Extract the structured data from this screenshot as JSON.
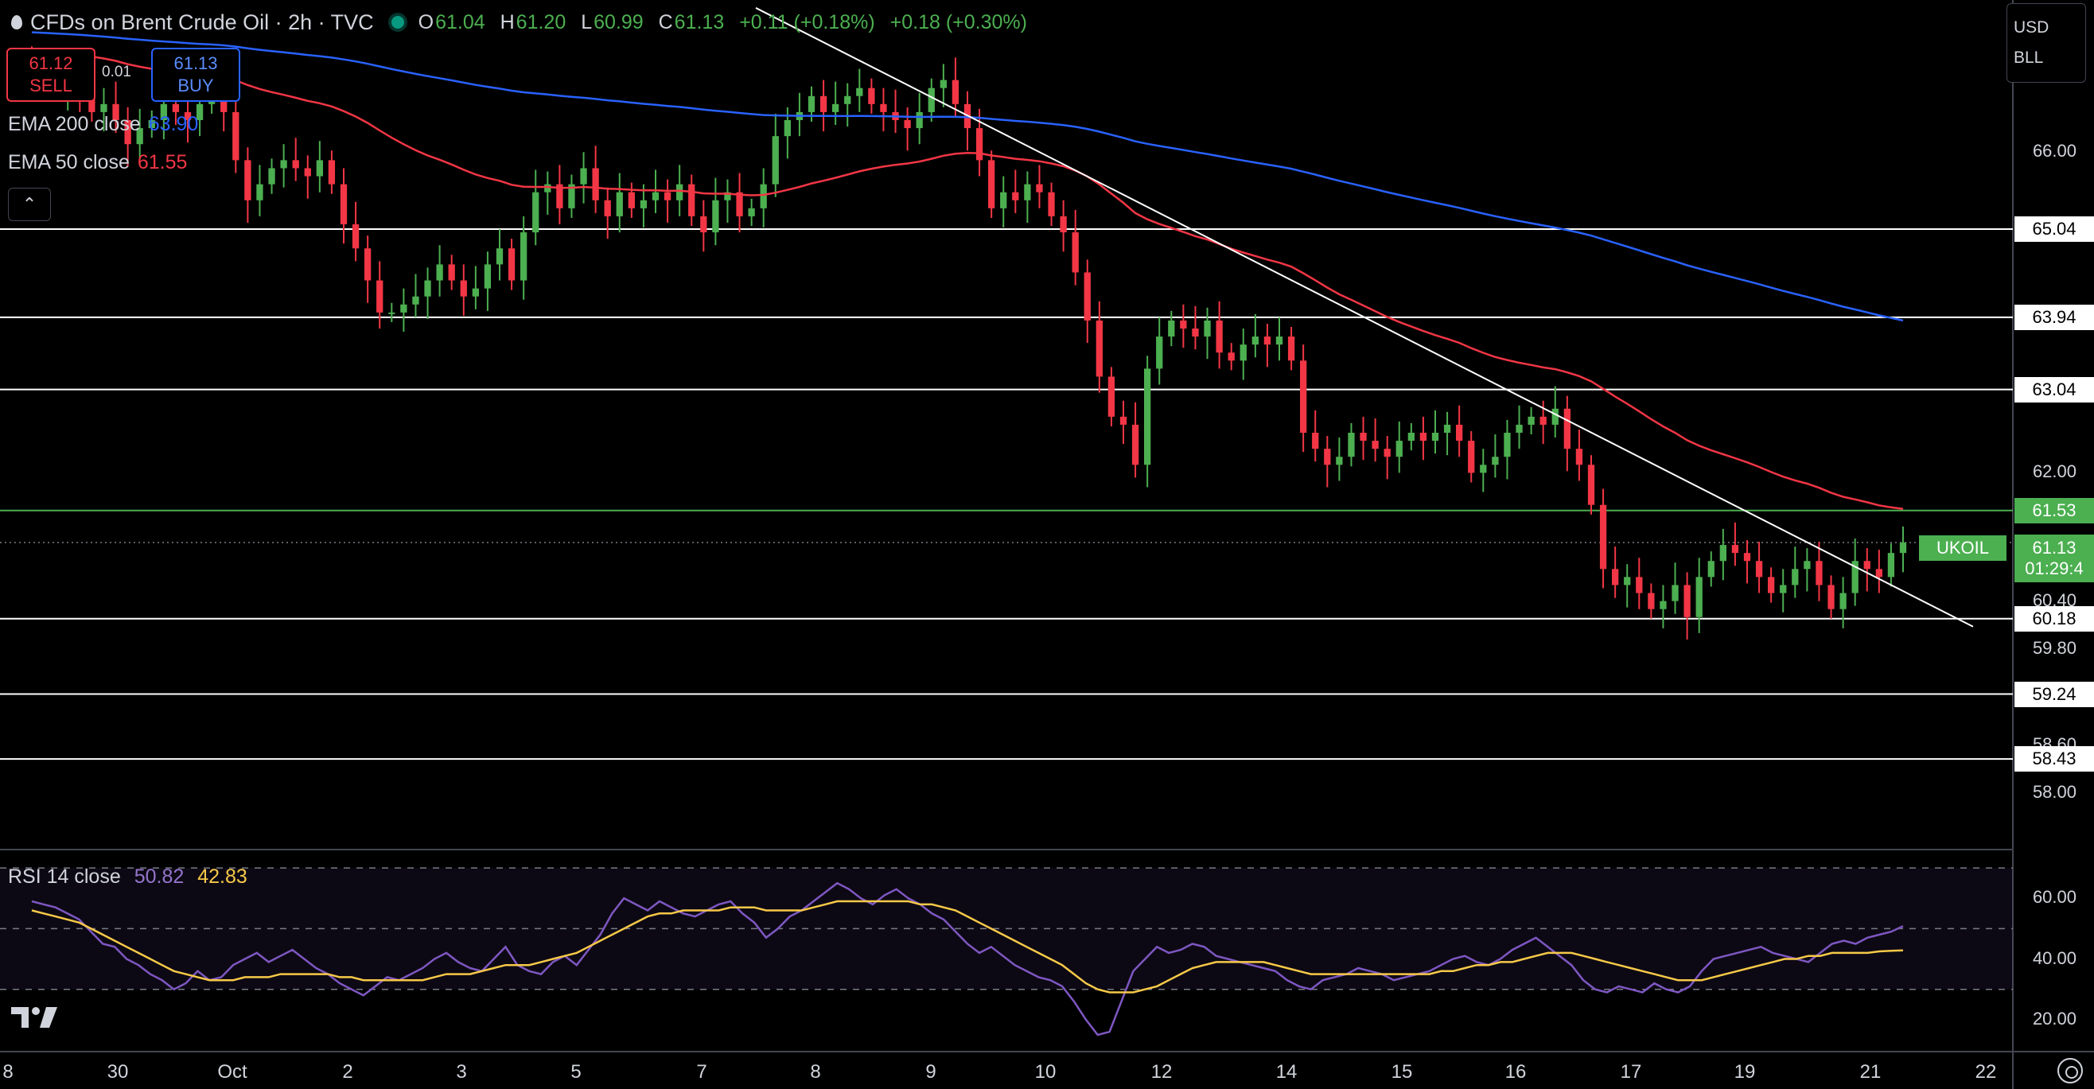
{
  "header": {
    "title": "CFDs on Brent Crude Oil · 2h · TVC",
    "open_label": "O",
    "open": "61.04",
    "high_label": "H",
    "high": "61.20",
    "low_label": "L",
    "low": "60.99",
    "close_label": "C",
    "close": "61.13",
    "change": "+0.11 (+0.18%)",
    "change2": "+0.18 (+0.30%)"
  },
  "trade": {
    "sell_price": "61.12",
    "sell_label": "SELL",
    "spread": "0.01",
    "buy_price": "61.13",
    "buy_label": "BUY"
  },
  "indicators": {
    "ema200_label": "EMA 200 close",
    "ema200_value": "63.90",
    "ema50_label": "EMA 50 close",
    "ema50_value": "61.55",
    "rsi_label": "RSI 14 close",
    "rsi_value": "50.82",
    "rsi_ma_value": "42.83"
  },
  "currency_box": {
    "line1": "USD",
    "line2": "BLL"
  },
  "symbol_tag": "UKOIL",
  "current_price": "61.13",
  "countdown": "01:29:4",
  "colors": {
    "up": "#4caf50",
    "down": "#f23645",
    "ema200": "#2962ff",
    "ema50": "#f23645",
    "rsi": "#7e57c2",
    "rsi_ma": "#f7c948",
    "level_line": "#ffffff",
    "ema_level_line": "#4caf50"
  },
  "chart_data": [
    {
      "type": "candlestick",
      "title": "CFDs on Brent Crude Oil · 2h · TVC",
      "x_axis_ticks": [
        "8",
        "30",
        "Oct",
        "2",
        "3",
        "5",
        "7",
        "8",
        "9",
        "10",
        "12",
        "14",
        "15",
        "16",
        "17",
        "19",
        "21",
        "22"
      ],
      "y_axis_ticks": [
        66.0,
        62.0,
        60.4,
        59.8,
        58.6,
        58.0
      ],
      "y_range": [
        57.3,
        67.7
      ],
      "horizontal_levels": [
        65.04,
        63.94,
        63.04,
        61.53,
        60.18,
        59.24,
        58.43
      ],
      "current_price": 61.13,
      "trendline": {
        "from_price": 67.8,
        "to_price": 60.18
      },
      "series": [
        {
          "name": "EMA 200 close",
          "last": 63.9,
          "start": 67.5
        },
        {
          "name": "EMA 50 close",
          "last": 61.55,
          "start": 67.3
        }
      ],
      "candle_closes": [
        67.1,
        66.9,
        66.8,
        66.9,
        66.7,
        66.5,
        66.6,
        66.4,
        66.1,
        66.3,
        66.4,
        66.6,
        66.5,
        66.4,
        66.6,
        66.8,
        66.5,
        65.9,
        65.4,
        65.6,
        65.8,
        65.9,
        65.8,
        65.7,
        65.9,
        65.6,
        65.1,
        64.8,
        64.4,
        64.0,
        64.0,
        64.1,
        64.2,
        64.4,
        64.6,
        64.4,
        64.2,
        64.3,
        64.6,
        64.8,
        64.4,
        65.0,
        65.5,
        65.6,
        65.3,
        65.6,
        65.8,
        65.4,
        65.2,
        65.5,
        65.3,
        65.4,
        65.5,
        65.4,
        65.6,
        65.2,
        65.0,
        65.4,
        65.5,
        65.2,
        65.3,
        65.6,
        66.2,
        66.4,
        66.5,
        66.7,
        66.5,
        66.6,
        66.7,
        66.8,
        66.6,
        66.5,
        66.4,
        66.3,
        66.5,
        66.8,
        66.9,
        66.6,
        66.3,
        65.9,
        65.3,
        65.5,
        65.4,
        65.6,
        65.5,
        65.2,
        65.0,
        64.5,
        63.9,
        63.2,
        62.7,
        62.6,
        62.1,
        63.3,
        63.7,
        63.9,
        63.8,
        63.7,
        63.9,
        63.5,
        63.4,
        63.6,
        63.7,
        63.6,
        63.7,
        63.4,
        62.5,
        62.3,
        62.1,
        62.2,
        62.5,
        62.4,
        62.3,
        62.2,
        62.4,
        62.5,
        62.4,
        62.5,
        62.6,
        62.4,
        62.0,
        62.1,
        62.2,
        62.5,
        62.6,
        62.7,
        62.6,
        62.8,
        62.3,
        62.1,
        61.6,
        60.8,
        60.6,
        60.7,
        60.5,
        60.3,
        60.4,
        60.6,
        60.2,
        60.7,
        60.9,
        61.1,
        61.0,
        60.9,
        60.7,
        60.5,
        60.6,
        60.8,
        60.9,
        60.6,
        60.3,
        60.5,
        60.9,
        60.8,
        60.7,
        61.0,
        61.13
      ]
    },
    {
      "type": "line",
      "title": "RSI 14 close",
      "y_axis_ticks": [
        60.0,
        40.0,
        20.0
      ],
      "y_range": [
        10,
        75
      ],
      "bands": [
        70,
        50,
        30
      ],
      "series": [
        {
          "name": "RSI 14 close",
          "last": 50.82,
          "values": [
            59,
            58,
            57,
            55,
            53,
            49,
            45,
            44,
            40,
            38,
            35,
            33,
            30,
            32,
            36,
            33,
            34,
            38,
            40,
            42,
            39,
            41,
            43,
            40,
            37,
            35,
            32,
            30,
            28,
            31,
            34,
            33,
            35,
            37,
            40,
            42,
            39,
            37,
            36,
            40,
            44,
            38,
            36,
            35,
            39,
            41,
            38,
            43,
            48,
            55,
            60,
            58,
            56,
            59,
            57,
            55,
            54,
            56,
            58,
            59,
            55,
            52,
            47,
            50,
            54,
            56,
            59,
            62,
            65,
            63,
            60,
            58,
            61,
            63,
            60,
            58,
            55,
            53,
            49,
            45,
            42,
            44,
            41,
            38,
            36,
            34,
            33,
            31,
            26,
            20,
            15,
            16,
            26,
            36,
            40,
            44,
            42,
            43,
            45,
            44,
            41,
            40,
            39,
            38,
            37,
            36,
            33,
            31,
            30,
            33,
            34,
            35,
            37,
            36,
            35,
            33,
            34,
            35,
            36,
            38,
            40,
            41,
            39,
            38,
            40,
            43,
            45,
            47,
            44,
            41,
            38,
            33,
            30,
            29,
            31,
            30,
            29,
            32,
            30,
            29,
            31,
            36,
            40,
            41,
            42,
            43,
            44,
            42,
            41,
            40,
            39,
            42,
            45,
            46,
            45,
            47,
            48,
            49,
            50.82
          ]
        },
        {
          "name": "RSI MA",
          "last": 42.83,
          "values": [
            56,
            55,
            54,
            53,
            52,
            50,
            48,
            46,
            44,
            42,
            40,
            38,
            36,
            35,
            34,
            33,
            33,
            33,
            34,
            34,
            34,
            35,
            35,
            35,
            35,
            35,
            34,
            34,
            33,
            33,
            33,
            33,
            33,
            33,
            34,
            35,
            35,
            35,
            36,
            37,
            38,
            38,
            38,
            39,
            40,
            41,
            42,
            44,
            46,
            48,
            50,
            52,
            54,
            55,
            55,
            56,
            56,
            56,
            56,
            57,
            57,
            57,
            56,
            56,
            56,
            56,
            57,
            58,
            59,
            59,
            59,
            59,
            59,
            59,
            59,
            58,
            58,
            57,
            56,
            54,
            52,
            50,
            48,
            46,
            44,
            42,
            40,
            38,
            35,
            32,
            30,
            29,
            29,
            29,
            30,
            31,
            33,
            35,
            37,
            38,
            39,
            39,
            39,
            39,
            39,
            38,
            37,
            36,
            35,
            35,
            35,
            35,
            35,
            35,
            35,
            35,
            35,
            35,
            35,
            36,
            36,
            37,
            38,
            38,
            39,
            39,
            40,
            41,
            42,
            42,
            42,
            41,
            40,
            39,
            38,
            37,
            36,
            35,
            34,
            33,
            33,
            33,
            34,
            35,
            36,
            37,
            38,
            39,
            40,
            40,
            41,
            41,
            42,
            42,
            42,
            42,
            42.5,
            42.7,
            42.83
          ]
        }
      ]
    }
  ]
}
